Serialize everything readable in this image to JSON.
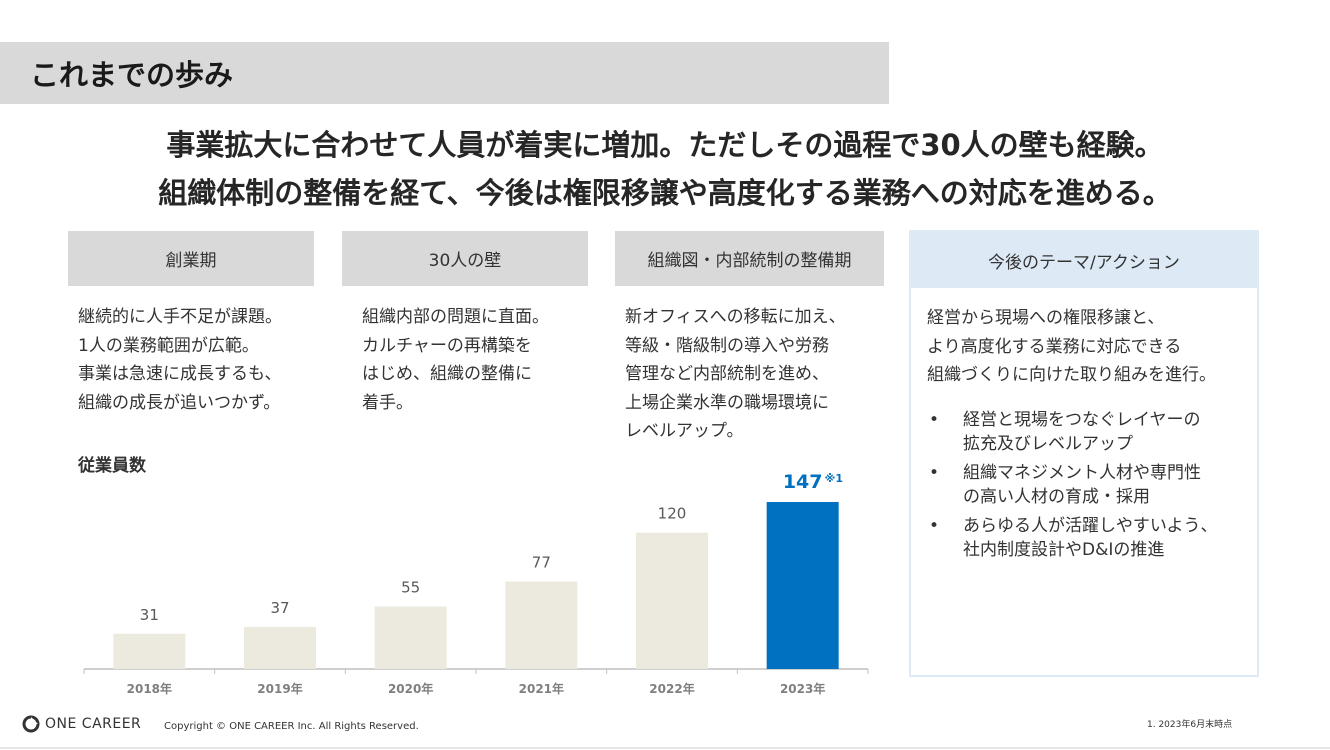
{
  "page_title": "これまでの歩み",
  "headline": {
    "line1": "事業拡大に合わせて人員が着実に増加。ただしその過程で30人の壁も経験。",
    "line2": "組織体制の整備を経て、今後は権限移譲や高度化する業務への対応を進める。"
  },
  "phases": [
    {
      "label": "創業期",
      "lines": [
        "継続的に人手不足が課題。",
        "1人の業務範囲が広範。",
        "事業は急速に成長するも、",
        "組織の成長が追いつかず。"
      ]
    },
    {
      "label": "30人の壁",
      "lines": [
        "組織内部の問題に直面。",
        "カルチャーの再構築を",
        "はじめ、組織の整備に",
        "着手。"
      ]
    },
    {
      "label": "組織図・内部統制の整備期",
      "lines": [
        "新オフィスへの移転に加え、",
        "等級・階級制の導入や労務",
        "管理など内部統制を進め、",
        "上場企業水準の職場環境に",
        "レベルアップ。"
      ]
    }
  ],
  "future": {
    "label": "今後のテーマ/アクション",
    "lead_lines": [
      "経営から現場への権限移譲と、",
      "より高度化する業務に対応できる",
      "組織づくりに向けた取り組みを進行。"
    ],
    "bullet_marker": "•",
    "bullets": [
      {
        "lines": [
          "経営と現場をつなぐレイヤーの",
          "拡充及びレベルアップ"
        ]
      },
      {
        "lines": [
          "組織マネジメント人材や専門性",
          "の高い人材の育成・採用"
        ]
      },
      {
        "lines": [
          "あらゆる人が活躍しやすいよう、",
          "社内制度設計やD&Iの推進"
        ]
      }
    ]
  },
  "chart_data": {
    "type": "bar",
    "title": "従業員数",
    "categories": [
      "2018年",
      "2019年",
      "2020年",
      "2021年",
      "2022年",
      "2023年"
    ],
    "values": [
      31,
      37,
      55,
      77,
      120,
      147
    ],
    "highlight_index": 5,
    "highlight_note": "※1",
    "colors": {
      "bar": "#ece9df",
      "highlight": "#0070c0",
      "label": "#595959",
      "axis": "#bfbfbf"
    },
    "ylim": [
      0,
      147
    ]
  },
  "footer": {
    "logo_text": "ONE CAREER",
    "logo_icon": "one-career-logo-icon",
    "copyright": "Copyright © ONE CAREER Inc. All Rights Reserved.",
    "footnote": "1.  2023年6月末時点"
  }
}
